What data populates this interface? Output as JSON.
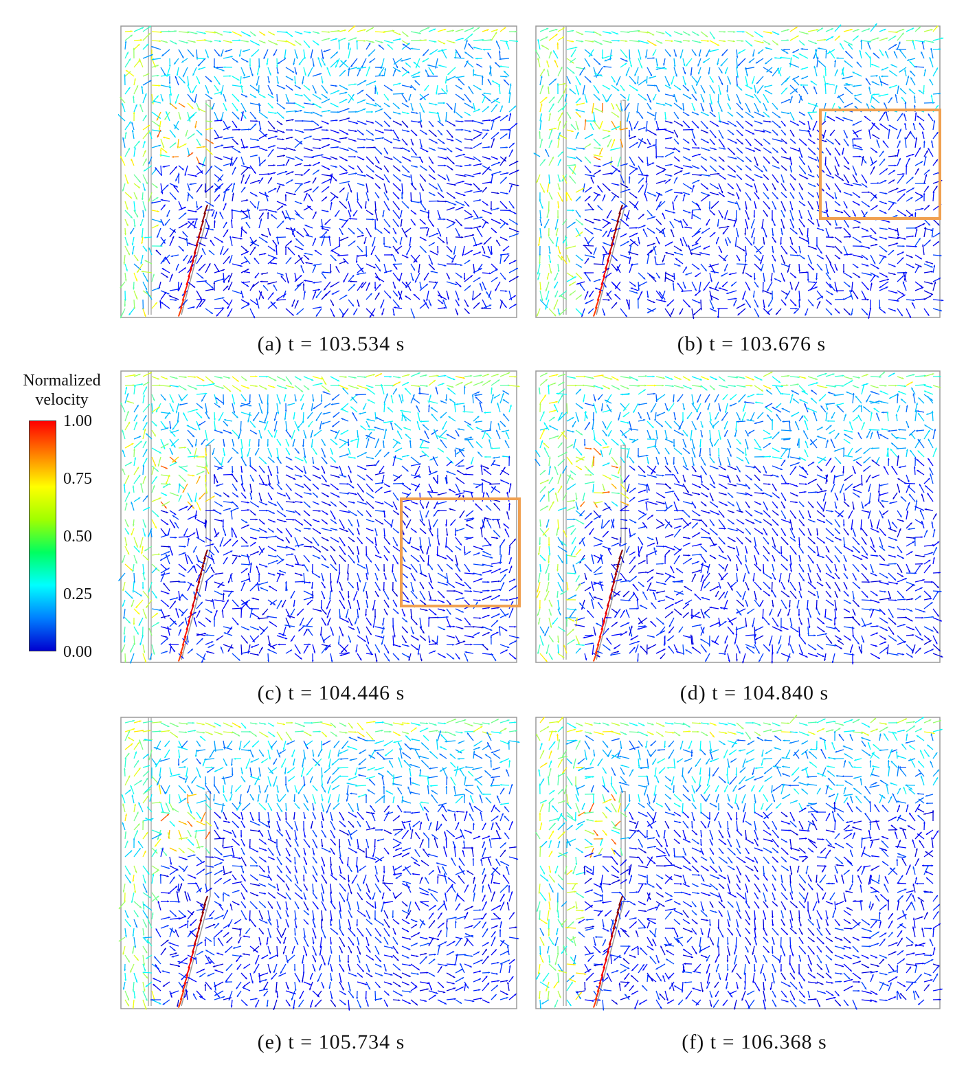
{
  "legend": {
    "title_line1": "Normalized",
    "title_line2": "velocity",
    "ticks": [
      "1.00",
      "0.75",
      "0.50",
      "0.25",
      "0.00"
    ],
    "colors": [
      "#0000d0",
      "#0080ff",
      "#00ffff",
      "#00ff60",
      "#a0ff00",
      "#ffff00",
      "#ff8000",
      "#ff0000"
    ]
  },
  "panels": [
    {
      "id": "a",
      "caption": "(a) t = 103.534 s",
      "highlight": false
    },
    {
      "id": "b",
      "caption": "(b) t = 103.676 s",
      "highlight": true
    },
    {
      "id": "c",
      "caption": "(c) t = 104.446 s",
      "highlight": true
    },
    {
      "id": "d",
      "caption": "(d) t = 104.840 s",
      "highlight": false
    },
    {
      "id": "e",
      "caption": "(e) t = 105.734 s",
      "highlight": false
    },
    {
      "id": "f",
      "caption": "(f) t = 106.368 s",
      "highlight": false
    }
  ],
  "highlight_color": "#f0a050",
  "wall_color": "#9a9a9a"
}
